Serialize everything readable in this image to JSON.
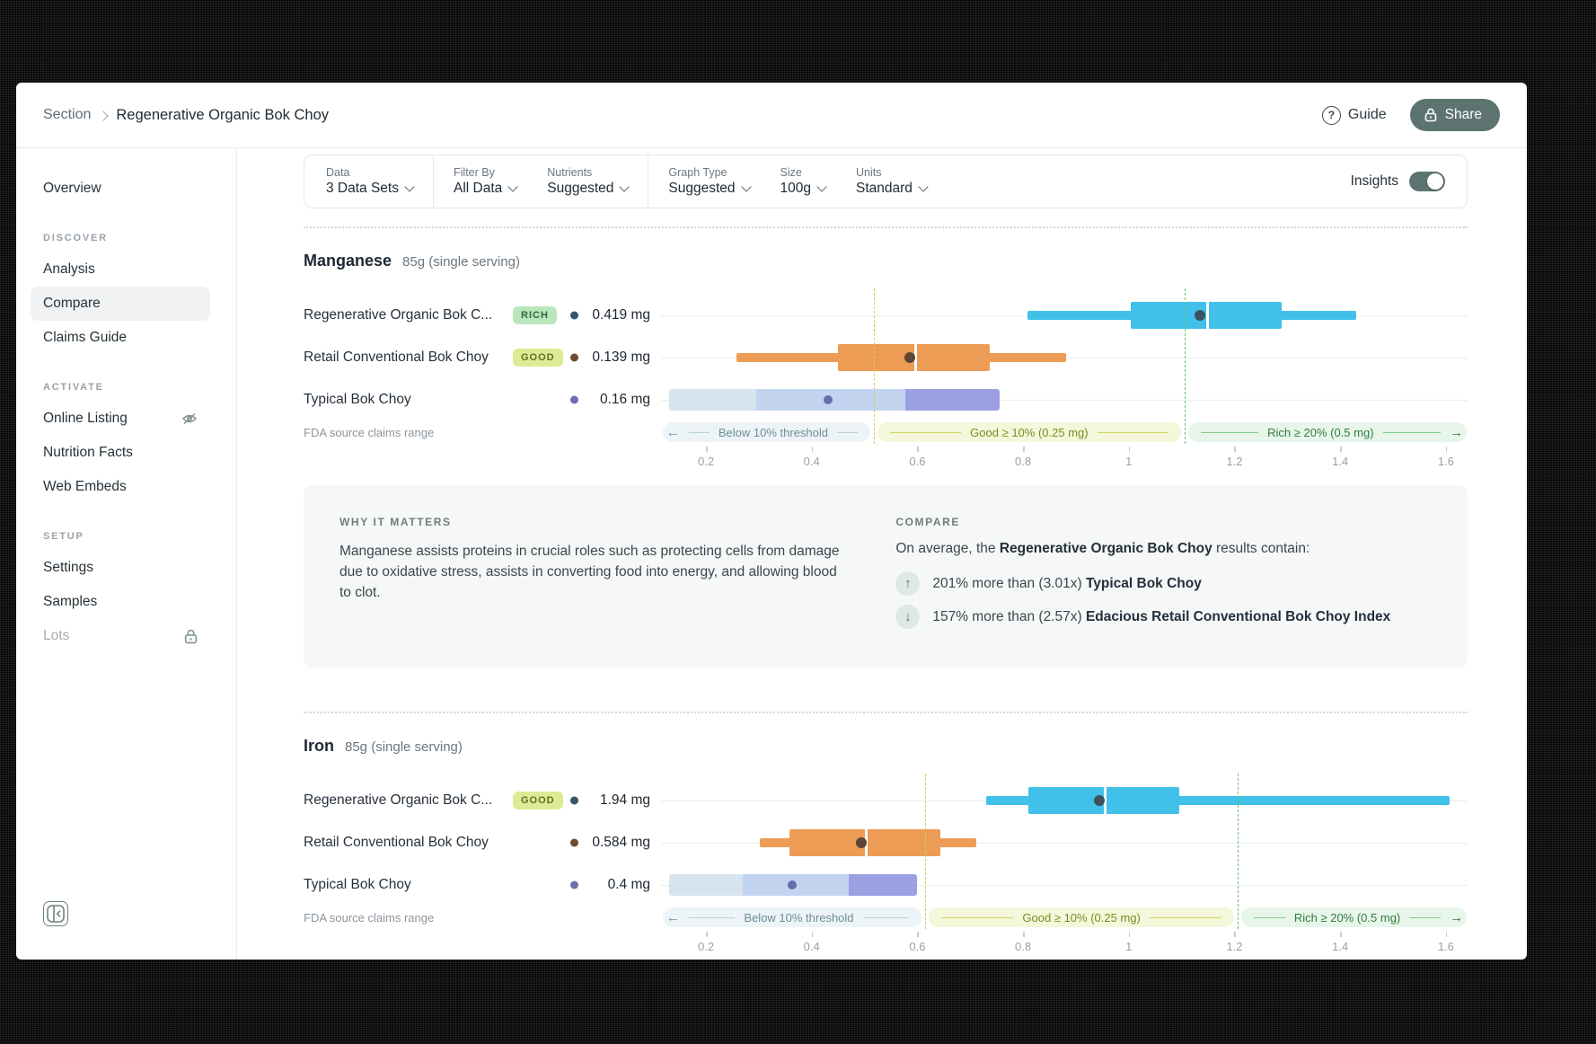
{
  "breadcrumb": {
    "section": "Section",
    "title": "Regenerative Organic Bok Choy"
  },
  "header": {
    "guide_label": "Guide",
    "share_label": "Share"
  },
  "sidebar": {
    "overview": "Overview",
    "groups": [
      {
        "heading": "DISCOVER",
        "items": [
          {
            "label": "Analysis"
          },
          {
            "label": "Compare"
          },
          {
            "label": "Claims Guide"
          }
        ]
      },
      {
        "heading": "ACTIVATE",
        "items": [
          {
            "label": "Online Listing",
            "icon": "eye-off"
          },
          {
            "label": "Nutrition Facts"
          },
          {
            "label": "Web Embeds"
          }
        ]
      },
      {
        "heading": "SETUP",
        "items": [
          {
            "label": "Settings"
          },
          {
            "label": "Samples"
          },
          {
            "label": "Lots",
            "icon": "lock",
            "disabled": true
          }
        ]
      }
    ]
  },
  "toolbar": {
    "fields": [
      {
        "label": "Data",
        "value": "3 Data Sets"
      },
      {
        "label": "Filter By",
        "value": "All Data"
      },
      {
        "label": "Nutrients",
        "value": "Suggested"
      },
      {
        "label": "Graph Type",
        "value": "Suggested"
      },
      {
        "label": "Size",
        "value": "100g"
      },
      {
        "label": "Units",
        "value": "Standard"
      }
    ],
    "insights_label": "Insights",
    "insights_on": true
  },
  "insights_panel": {
    "why": {
      "heading": "WHY IT MATTERS",
      "text": "Manganese assists proteins in crucial roles such as protecting cells from damage due to oxidative stress, assists in converting food into energy, and allowing blood to clot."
    },
    "compare": {
      "heading": "COMPARE",
      "intro_pre": "On average, the ",
      "intro_bold": "Regenerative Organic Bok Choy",
      "intro_post": " results contain:",
      "rows": [
        {
          "dir": "up",
          "text": "201% more than (3.01x) ",
          "bold": "Typical Bok Choy"
        },
        {
          "dir": "down",
          "text": "157% more than (2.57x) ",
          "bold": "Edacious Retail Conventional Bok Choy Index"
        }
      ]
    }
  },
  "chart_data": [
    {
      "type": "boxplot",
      "nutrient": "Manganese",
      "serving": "85g (single serving)",
      "unit": "mg",
      "fda_label": "FDA source claims range",
      "axis": {
        "range": [
          0.115,
          1.641
        ],
        "ticks": [
          0.2,
          0.4,
          0.6,
          0.8,
          1,
          1.2,
          1.4,
          1.6
        ],
        "tick_labels": [
          "0.2",
          "0.4",
          "0.6",
          "0.8",
          "1",
          "1.2",
          "1.4",
          "1.6"
        ]
      },
      "thresholds": {
        "good_at": 0.518,
        "rich_at": 1.105,
        "line_colors": [
          "#c9d44f",
          "#67c069"
        ],
        "zones": [
          {
            "label": "Below 10% threshold",
            "text_color": "#6d8d98",
            "line_color": "#b7d3de",
            "bg": "#edf4f7",
            "arrow": "left"
          },
          {
            "label": "Good ≥ 10% (0.25 mg)",
            "text_color": "#7a8d23",
            "line_color": "#ccd75a",
            "bg": "#f4f7da",
            "arrow": "none"
          },
          {
            "label": "Rich ≥ 20% (0.5 mg)",
            "text_color": "#2f7d3f",
            "line_color": "#83cc8e",
            "bg": "#e8f5ea",
            "arrow": "right"
          }
        ]
      },
      "rows": [
        {
          "label": "Regenerative Organic Bok C...",
          "badge": {
            "text": "RICH",
            "bg": "#b9e6bd",
            "color": "#2d6a39"
          },
          "dot_color": "#33566b",
          "value": "0.419 mg",
          "kind": "box",
          "color": "#41c0ea",
          "mean_color": "#3d5260",
          "box": {
            "lo": 0.808,
            "q1": 1.004,
            "median": 1.146,
            "q3": 1.289,
            "hi": 1.43,
            "mean": 1.135
          }
        },
        {
          "label": "Retail Conventional Bok Choy",
          "badge": {
            "text": "GOOD",
            "bg": "#dcec95",
            "color": "#5f701f"
          },
          "dot_color": "#6f4a30",
          "value": "0.139 mg",
          "kind": "box",
          "color": "#ec9c55",
          "mean_color": "#5d4433",
          "box": {
            "lo": 0.258,
            "q1": 0.45,
            "median": 0.594,
            "q3": 0.737,
            "hi": 0.881,
            "mean": 0.586
          }
        },
        {
          "label": "Typical Bok Choy",
          "badge": null,
          "dot_color": "#6a71ad",
          "value": "0.16 mg",
          "kind": "range",
          "colors": [
            "#d7e4ed",
            "#c2d3f0",
            "#9aa0e2"
          ],
          "stops": [
            0.13,
            0.295,
            0.577,
            0.756
          ],
          "dot": 0.431,
          "range_dot_color": "#666da9"
        }
      ]
    },
    {
      "type": "boxplot",
      "nutrient": "Iron",
      "serving": "85g (single serving)",
      "unit": "mg",
      "fda_label": "FDA source claims range",
      "axis": {
        "range": [
          0.115,
          1.641
        ],
        "ticks": [
          0.2,
          0.4,
          0.6,
          0.8,
          1,
          1.2,
          1.4,
          1.6
        ],
        "tick_labels": [
          "0.2",
          "0.4",
          "0.6",
          "0.8",
          "1",
          "1.2",
          "1.4",
          "1.6"
        ]
      },
      "thresholds": {
        "good_at": 0.615,
        "rich_at": 1.206,
        "line_colors": [
          "#c9d44f",
          "#67c069"
        ],
        "zones": [
          {
            "label": "Below 10% threshold",
            "text_color": "#6d8d98",
            "line_color": "#b7d3de",
            "bg": "#edf4f7",
            "arrow": "left"
          },
          {
            "label": "Good ≥ 10% (0.25 mg)",
            "text_color": "#7a8d23",
            "line_color": "#ccd75a",
            "bg": "#f4f7da",
            "arrow": "none"
          },
          {
            "label": "Rich ≥ 20% (0.5 mg)",
            "text_color": "#2f7d3f",
            "line_color": "#83cc8e",
            "bg": "#e8f5ea",
            "arrow": "right"
          }
        ]
      },
      "rows": [
        {
          "label": "Regenerative Organic Bok C...",
          "badge": {
            "text": "GOOD",
            "bg": "#dcec95",
            "color": "#5f701f"
          },
          "dot_color": "#33566b",
          "value": "1.94 mg",
          "kind": "box",
          "color": "#41c0ea",
          "mean_color": "#3d5260",
          "box": {
            "lo": 0.73,
            "q1": 0.81,
            "median": 0.953,
            "q3": 1.095,
            "hi": 1.607,
            "mean": 0.944
          }
        },
        {
          "label": "Retail Conventional Bok Choy",
          "badge": null,
          "dot_color": "#6f4a30",
          "value": "0.584 mg",
          "kind": "box",
          "color": "#ec9c55",
          "mean_color": "#5d4433",
          "box": {
            "lo": 0.302,
            "q1": 0.358,
            "median": 0.501,
            "q3": 0.643,
            "hi": 0.711,
            "mean": 0.494
          }
        },
        {
          "label": "Typical Bok Choy",
          "badge": null,
          "dot_color": "#6a71ad",
          "value": "0.4 mg",
          "kind": "range",
          "colors": [
            "#d7e4ed",
            "#c2d3f0",
            "#9aa0e2"
          ],
          "stops": [
            0.13,
            0.27,
            0.47,
            0.6
          ],
          "dot": 0.363,
          "range_dot_color": "#666da9"
        }
      ]
    }
  ]
}
